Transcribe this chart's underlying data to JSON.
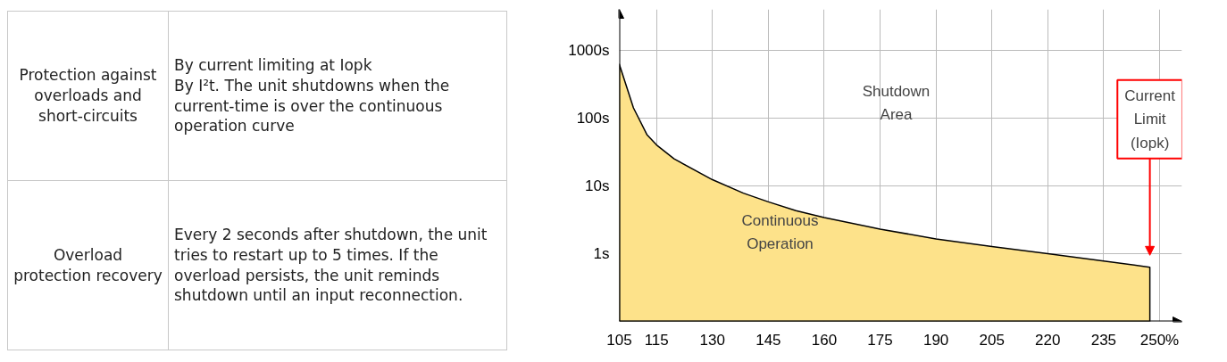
{
  "chart_data": [
    {
      "type": "other",
      "annotations": [
        "Protection against overloads and short-circuits",
        "By current limiting at Iopk\nBy I²t. The unit shutdowns when the current-time is over the continuous operation curve",
        "Overload protection recovery",
        "Every 2 seconds after shutdown, the unit tries to restart up to 5 times. If the overload persists, the unit reminds shutdown until an input reconnection."
      ]
    },
    {
      "type": "area",
      "x": [
        105,
        108.8,
        112.4,
        115,
        119.7,
        130,
        138.3,
        145,
        152.4,
        160,
        175,
        190,
        205,
        220,
        235,
        247.4
      ],
      "series": [
        {
          "color": "#fde28a",
          "values": [
            620,
            141,
            57,
            40,
            25,
            12.3,
            7.8,
            5.8,
            4.3,
            3.4,
            2.3,
            1.65,
            1.27,
            1.0,
            0.78,
            0.63
          ]
        }
      ],
      "log": "y",
      "xlim": [
        105,
        256
      ],
      "ylim": [
        0.1,
        4000
      ],
      "xticks": [
        105,
        115,
        130,
        145,
        160,
        175,
        190,
        205,
        220,
        235,
        {
          "value": 250,
          "label": "250%"
        }
      ],
      "yticks": [
        {
          "value": 1,
          "label": "1s"
        },
        {
          "value": 10,
          "label": "10s"
        },
        {
          "value": 100,
          "label": "100s"
        },
        {
          "value": 1000,
          "label": "1000s"
        }
      ],
      "grid": true,
      "marker": "none",
      "line_style": "solid",
      "annotations": [
        "Shutdown\nArea",
        "Continuous\nOperation",
        "Current\nLimit\n(Iopk)"
      ]
    }
  ]
}
